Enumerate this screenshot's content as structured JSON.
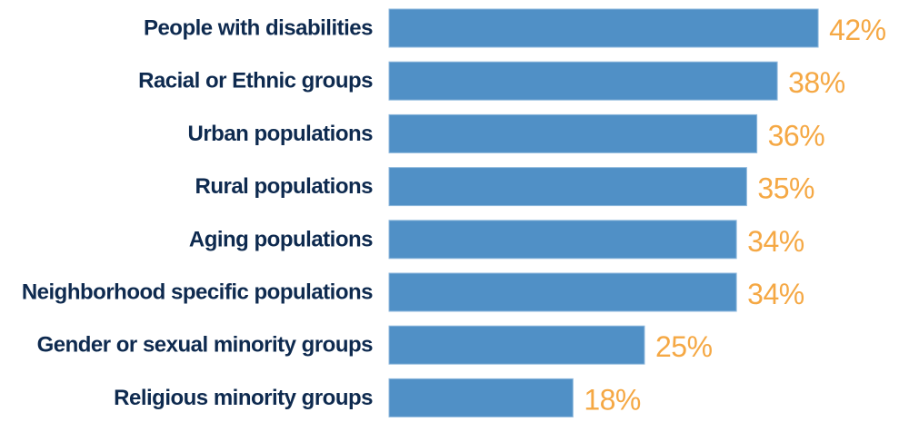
{
  "chart_data": {
    "type": "bar",
    "orientation": "horizontal",
    "title": "",
    "xlabel": "",
    "ylabel": "",
    "xlim": [
      0,
      42
    ],
    "grid": false,
    "legend": "none",
    "categories": [
      "People with disabilities",
      "Racial or Ethnic groups",
      "Urban populations",
      "Rural populations",
      "Aging populations",
      "Neighborhood specific populations",
      "Gender or sexual minority groups",
      "Religious minority groups"
    ],
    "values": [
      42,
      38,
      36,
      35,
      34,
      34,
      25,
      18
    ],
    "value_labels": [
      "42%",
      "38%",
      "36%",
      "35%",
      "34%",
      "34%",
      "25%",
      "18%"
    ],
    "colors": {
      "bar": "#5090c6",
      "category_text": "#0e2a4f",
      "value_text": "#f5a844"
    }
  }
}
